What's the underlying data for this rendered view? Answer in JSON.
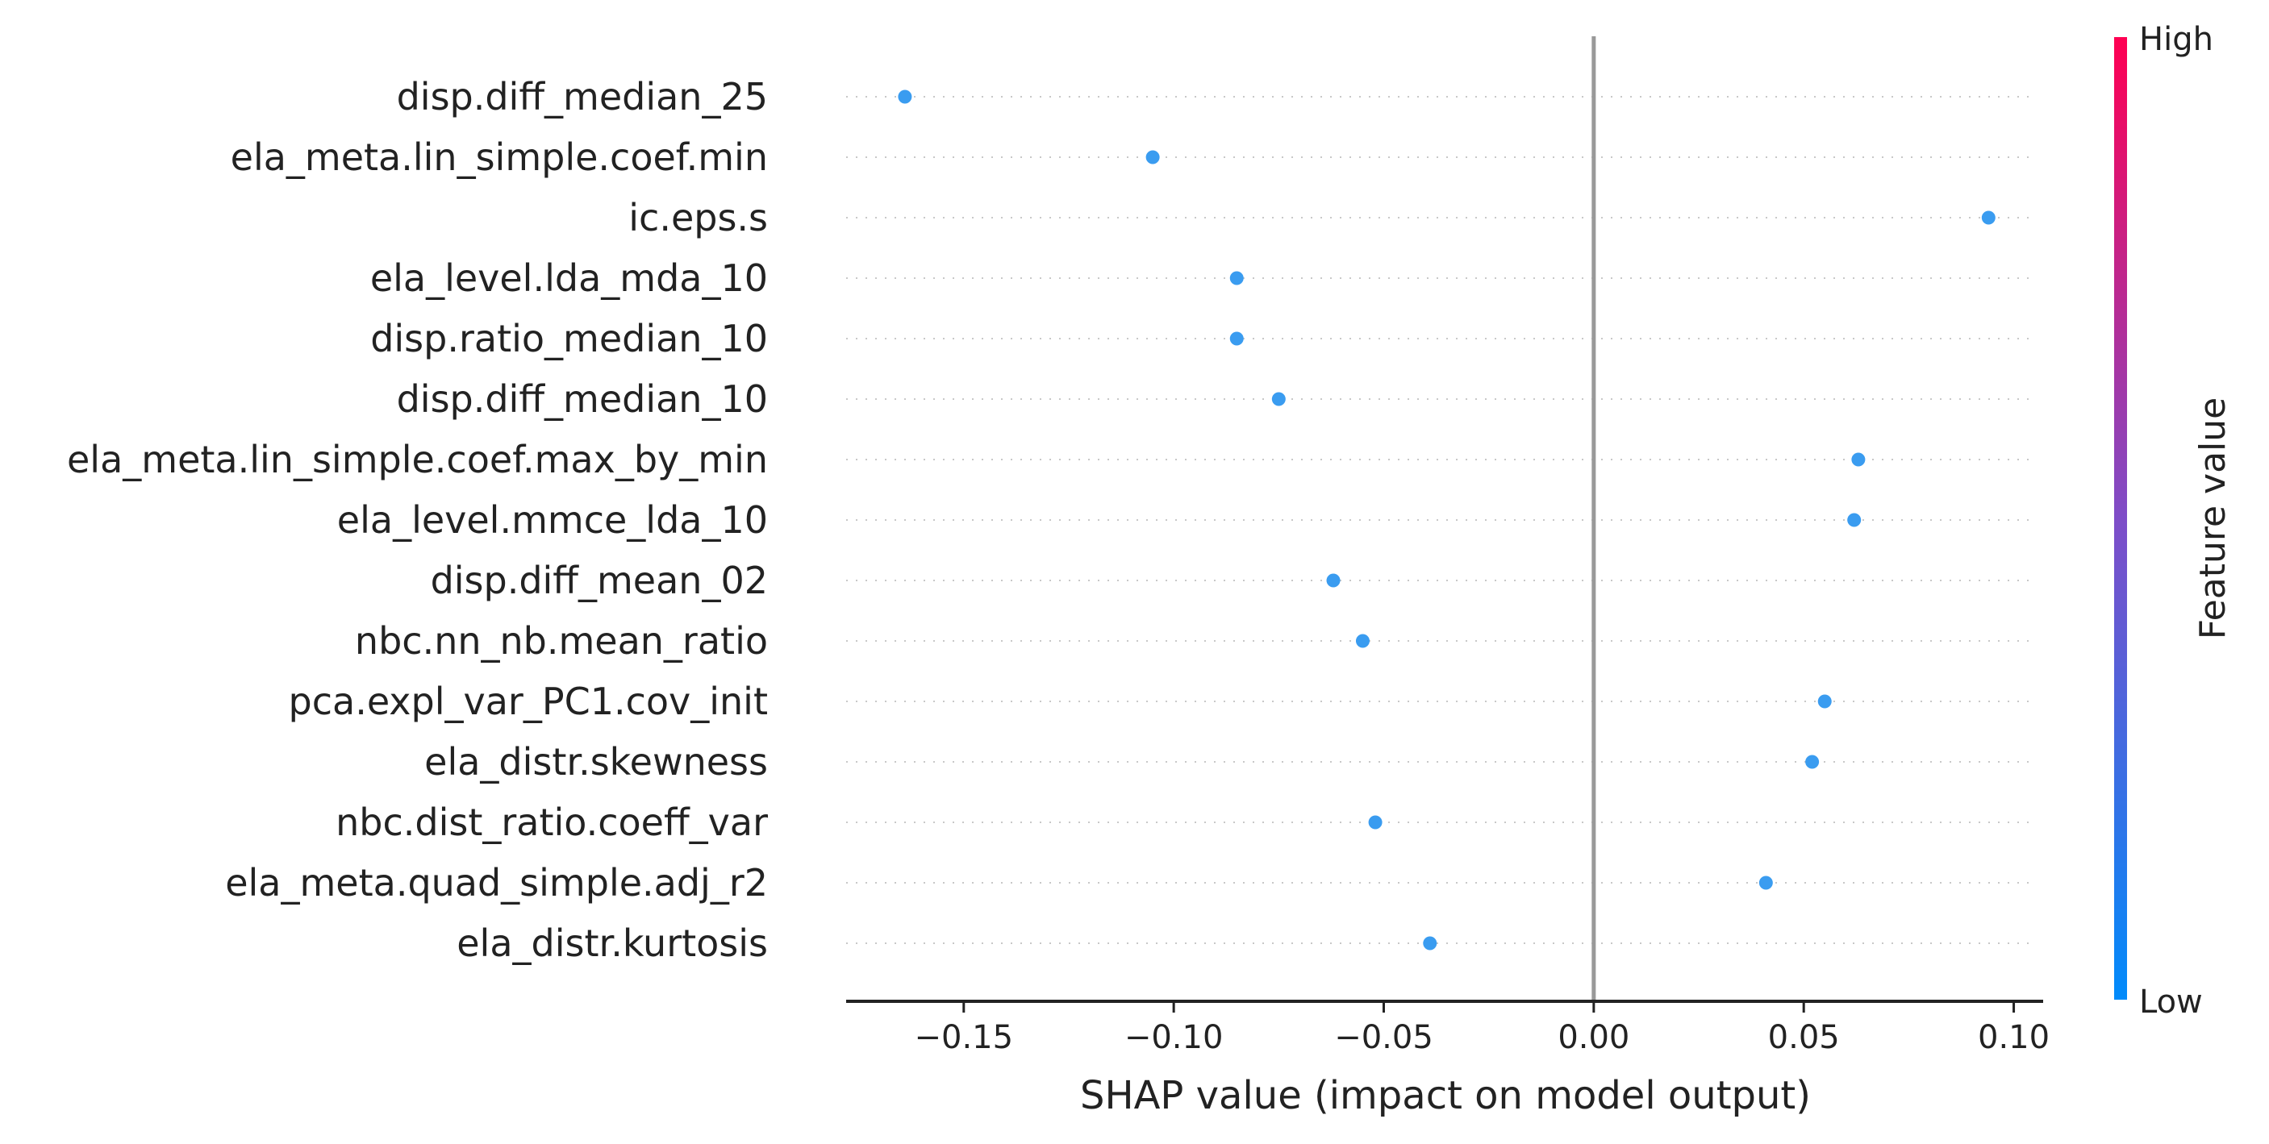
{
  "chart_data": {
    "type": "scatter",
    "subtype": "shap-beeswarm",
    "title": "",
    "xlabel": "SHAP value (impact on model output)",
    "ylabel": "",
    "xlim": [
      -0.178,
      0.107
    ],
    "x_ticks": [
      -0.15,
      -0.1,
      -0.05,
      0.0,
      0.05,
      0.1
    ],
    "x_tick_labels": [
      "−0.15",
      "−0.10",
      "−0.05",
      "0.00",
      "0.05",
      "0.10"
    ],
    "zero_line": 0.0,
    "grid": false,
    "row_guides": "dotted",
    "features": [
      {
        "name": "disp.diff_median_25",
        "shap": -0.164
      },
      {
        "name": "ela_meta.lin_simple.coef.min",
        "shap": -0.105
      },
      {
        "name": "ic.eps.s",
        "shap": 0.094
      },
      {
        "name": "ela_level.lda_mda_10",
        "shap": -0.085
      },
      {
        "name": "disp.ratio_median_10",
        "shap": -0.085
      },
      {
        "name": "disp.diff_median_10",
        "shap": -0.075
      },
      {
        "name": "ela_meta.lin_simple.coef.max_by_min",
        "shap": 0.063
      },
      {
        "name": "ela_level.mmce_lda_10",
        "shap": 0.062
      },
      {
        "name": "disp.diff_mean_02",
        "shap": -0.062
      },
      {
        "name": "nbc.nn_nb.mean_ratio",
        "shap": -0.055
      },
      {
        "name": "pca.expl_var_PC1.cov_init",
        "shap": 0.055
      },
      {
        "name": "ela_distr.skewness",
        "shap": 0.052
      },
      {
        "name": "nbc.dist_ratio.coeff_var",
        "shap": -0.052
      },
      {
        "name": "ela_meta.quad_simple.adj_r2",
        "shap": 0.041
      },
      {
        "name": "ela_distr.kurtosis",
        "shap": -0.039
      }
    ],
    "colorbar": {
      "label": "Feature value",
      "high_label": "High",
      "low_label": "Low",
      "high_color": "#ff0052",
      "mid_color": "#7e4dc8",
      "low_color": "#008bfb"
    },
    "point_color": "#3a9cf0"
  }
}
